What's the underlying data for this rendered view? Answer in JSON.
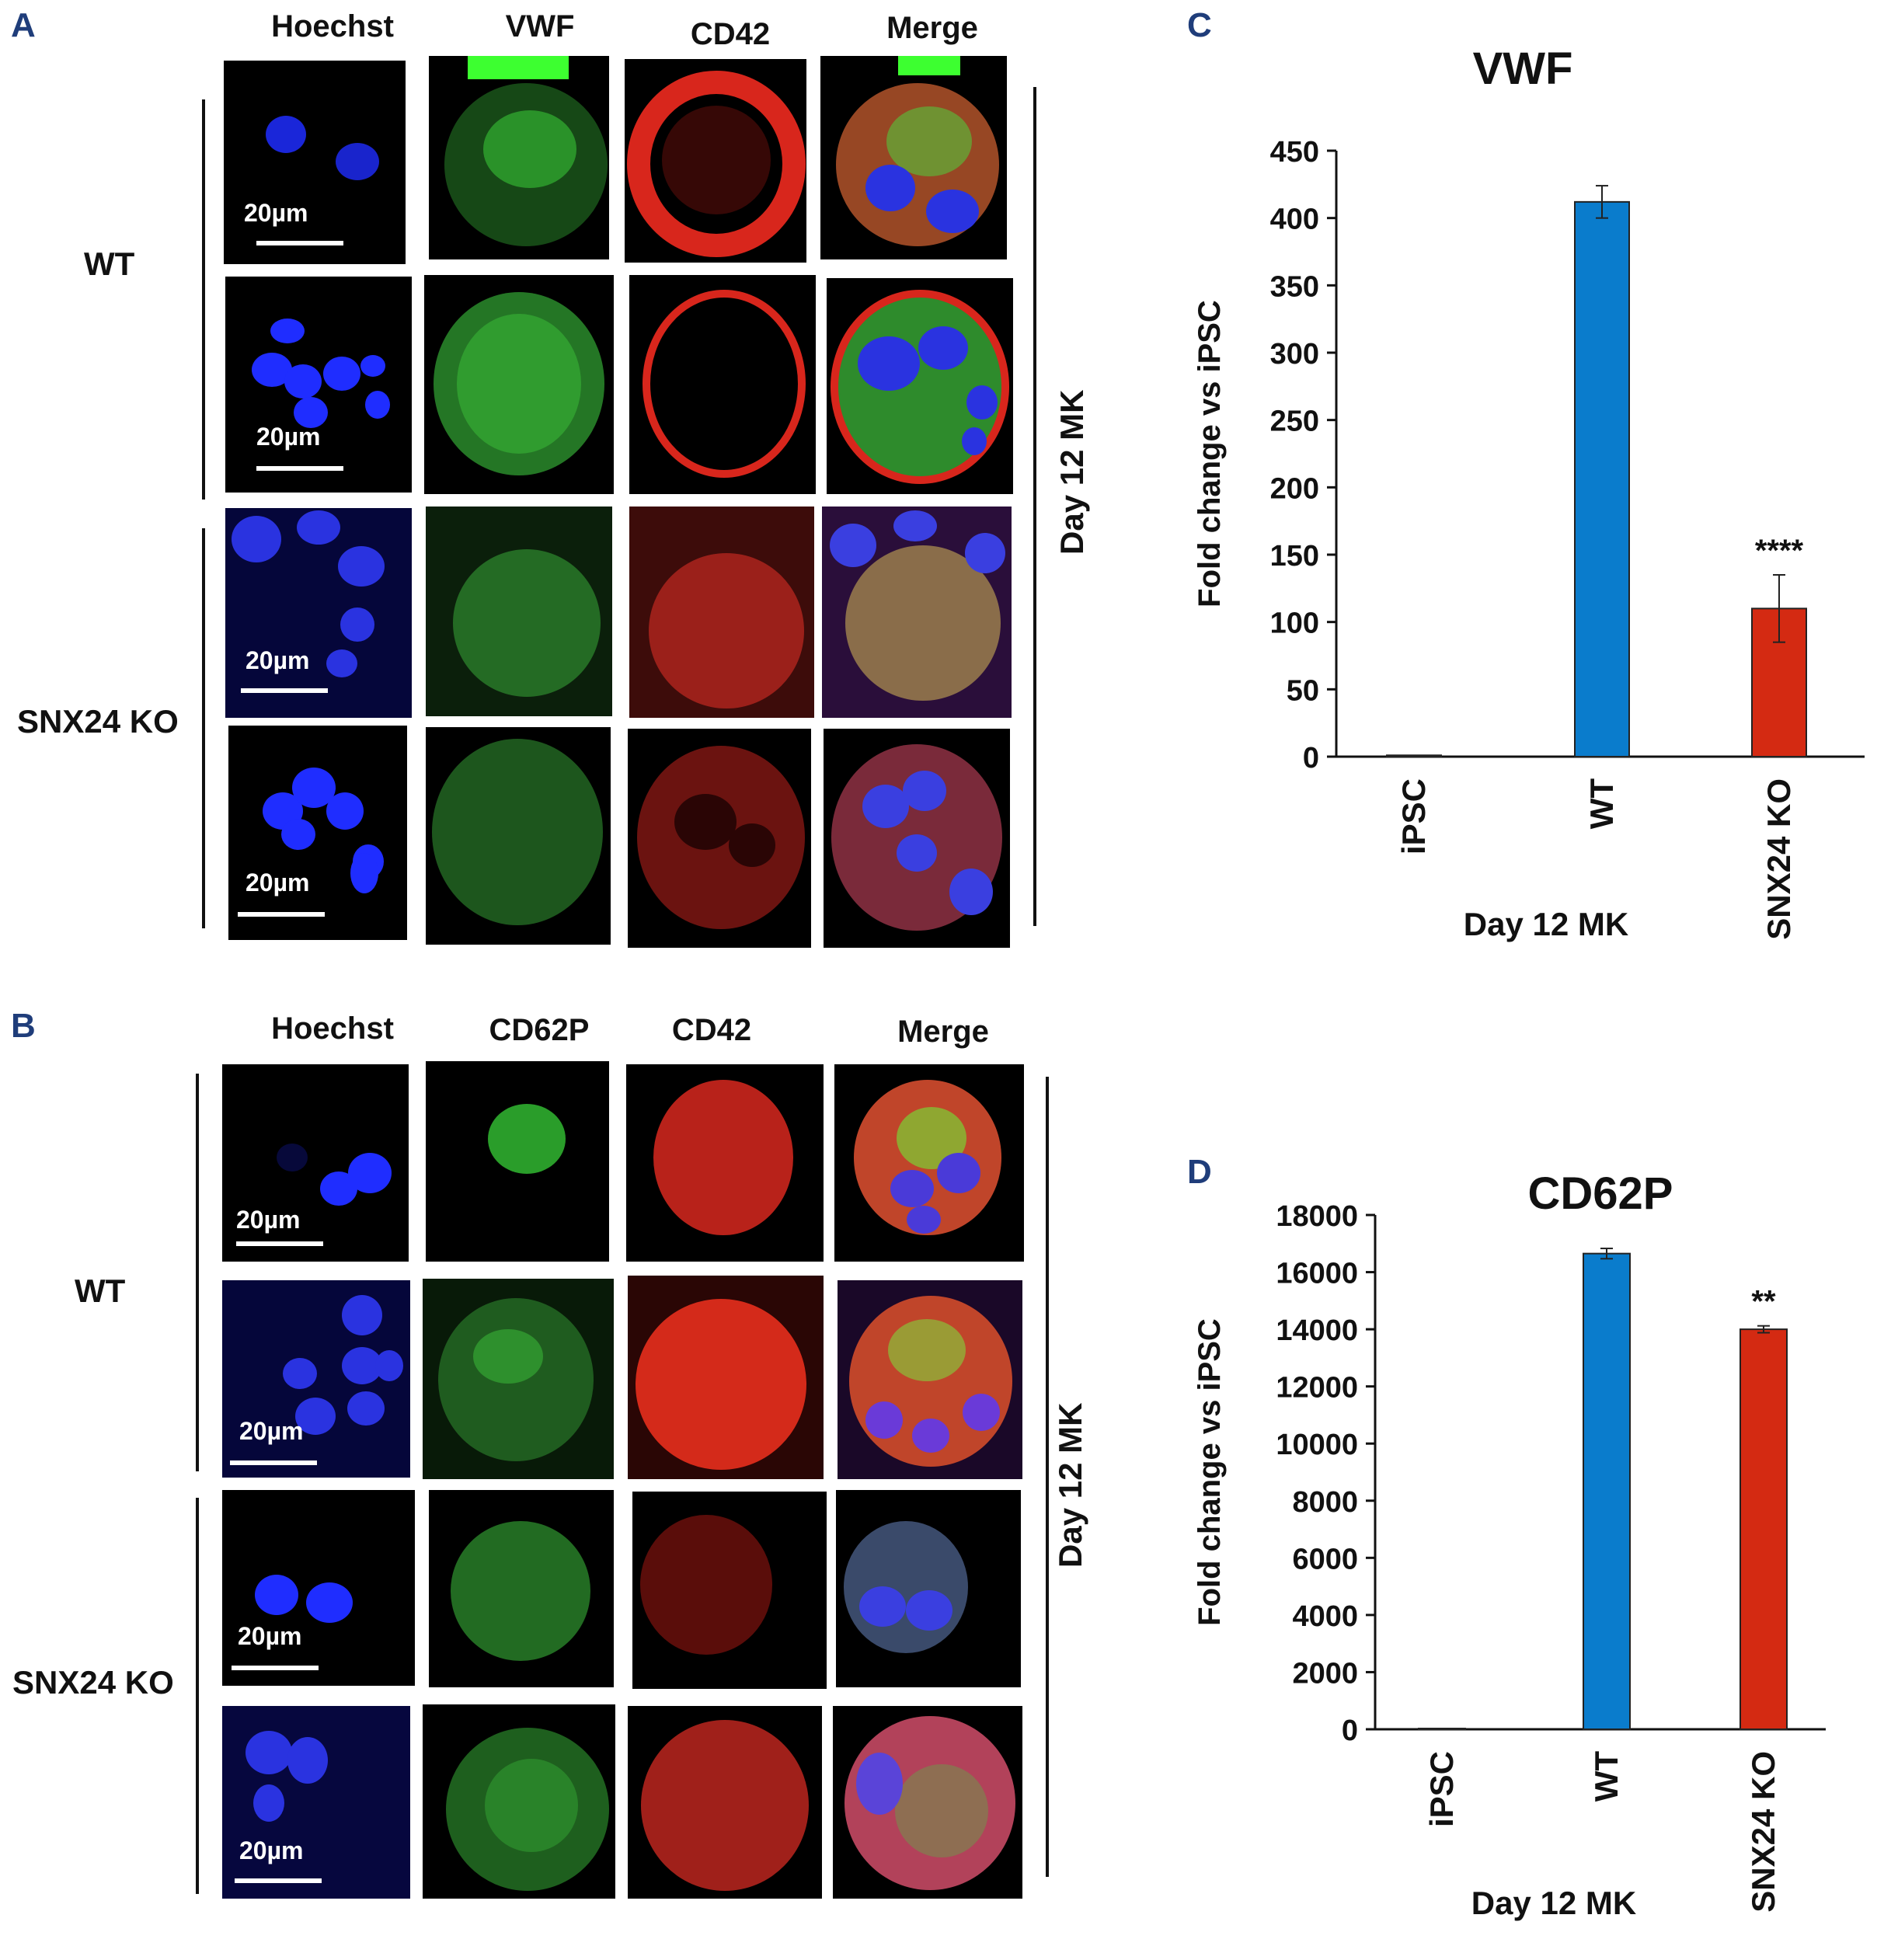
{
  "panels": {
    "A": {
      "letter": "A",
      "columns": [
        "Hoechst",
        "VWF",
        "CD42",
        "Merge"
      ],
      "groups": [
        "WT",
        "SNX24 KO"
      ],
      "side_label": "Day 12 MK",
      "scale_bar": "20µm"
    },
    "B": {
      "letter": "B",
      "columns": [
        "Hoechst",
        "CD62P",
        "CD42",
        "Merge"
      ],
      "groups": [
        "WT",
        "SNX24 KO"
      ],
      "side_label": "Day 12 MK",
      "scale_bar": "20µm"
    },
    "C": {
      "letter": "C"
    },
    "D": {
      "letter": "D"
    }
  },
  "colors": {
    "wt_bar": "#0a7ccc",
    "ko_bar": "#d42a12",
    "nucleus": "#1e2cff",
    "green": "#2ee04a",
    "red": "#e8281e"
  },
  "chart_data": [
    {
      "type": "bar",
      "title": "VWF",
      "categories": [
        "iPSC",
        "WT",
        "SNX24 KO"
      ],
      "values": [
        1,
        412,
        110
      ],
      "errors": [
        0,
        12,
        25
      ],
      "annotations": [
        "",
        "",
        "****"
      ],
      "xlabel": "Day 12 MK",
      "ylabel": "Fold change vs iPSC",
      "ylim": [
        0,
        450
      ],
      "yticks": [
        0,
        50,
        100,
        150,
        200,
        250,
        300,
        350,
        400,
        450
      ]
    },
    {
      "type": "bar",
      "title": "CD62P",
      "categories": [
        "iPSC",
        "WT",
        "SNX24 KO"
      ],
      "values": [
        1,
        16650,
        14000
      ],
      "errors": [
        0,
        180,
        120
      ],
      "annotations": [
        "",
        "",
        "**"
      ],
      "xlabel": "Day 12 MK",
      "ylabel": "Fold change vs iPSC",
      "ylim": [
        0,
        18000
      ],
      "yticks": [
        0,
        2000,
        4000,
        6000,
        8000,
        10000,
        12000,
        14000,
        16000,
        18000
      ]
    }
  ]
}
